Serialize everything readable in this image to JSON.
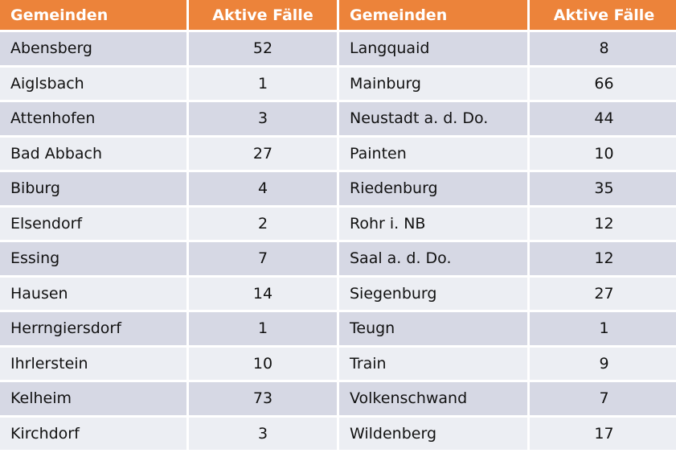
{
  "headers": [
    "Gemeinden",
    "Aktive Fälle",
    "Gemeinden",
    "Aktive Fälle"
  ],
  "rows": [
    {
      "left_name": "Abensberg",
      "left_cases": "52",
      "right_name": "Langquaid",
      "right_cases": "8"
    },
    {
      "left_name": "Aiglsbach",
      "left_cases": "1",
      "right_name": "Mainburg",
      "right_cases": "66"
    },
    {
      "left_name": "Attenhofen",
      "left_cases": "3",
      "right_name": "Neustadt a. d. Do.",
      "right_cases": "44"
    },
    {
      "left_name": "Bad Abbach",
      "left_cases": "27",
      "right_name": "Painten",
      "right_cases": "10"
    },
    {
      "left_name": "Biburg",
      "left_cases": "4",
      "right_name": "Riedenburg",
      "right_cases": "35"
    },
    {
      "left_name": "Elsendorf",
      "left_cases": "2",
      "right_name": "Rohr i. NB",
      "right_cases": "12"
    },
    {
      "left_name": "Essing",
      "left_cases": "7",
      "right_name": "Saal a. d. Do.",
      "right_cases": "12"
    },
    {
      "left_name": "Hausen",
      "left_cases": "14",
      "right_name": "Siegenburg",
      "right_cases": "27"
    },
    {
      "left_name": "Herrngiersdorf",
      "left_cases": "1",
      "right_name": "Teugn",
      "right_cases": "1"
    },
    {
      "left_name": "Ihrlerstein",
      "left_cases": "10",
      "right_name": "Train",
      "right_cases": "9"
    },
    {
      "left_name": "Kelheim",
      "left_cases": "73",
      "right_name": "Volkenschwand",
      "right_cases": "7"
    },
    {
      "left_name": "Kirchdorf",
      "left_cases": "3",
      "right_name": "Wildenberg",
      "right_cases": "17"
    }
  ],
  "colors": {
    "header_bg": "#ec833a",
    "header_text": "#ffffff",
    "row_odd": "#d6d8e4",
    "row_even": "#eceef3"
  }
}
